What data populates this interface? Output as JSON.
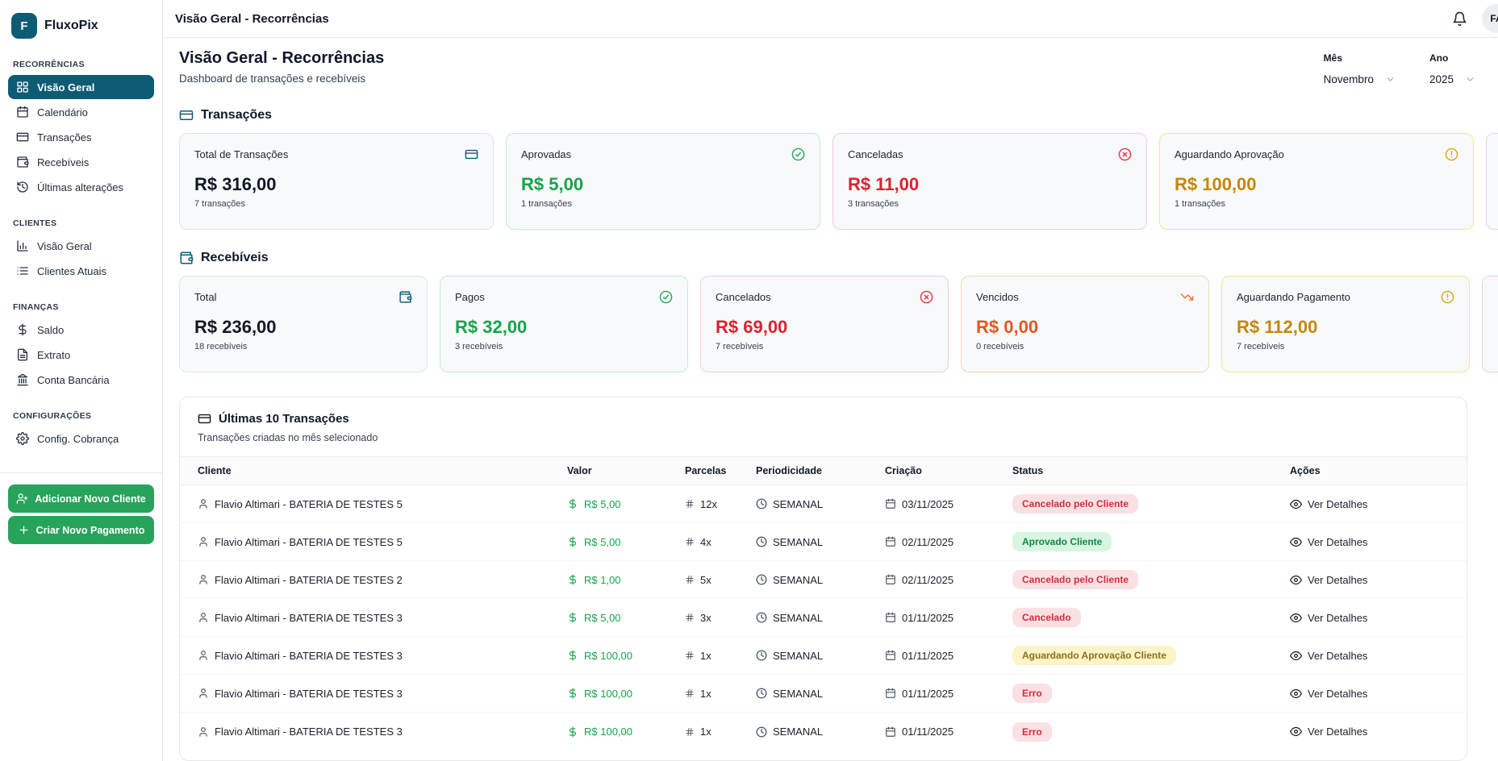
{
  "colors": {
    "brand_teal": "#0d5c74",
    "green": "#16a34a",
    "red": "#da2330",
    "amber": "#c5860c",
    "orange": "#e25822",
    "button_green": "#27a35b"
  },
  "brand": {
    "logo_letter": "F",
    "name": "FluxoPix"
  },
  "header": {
    "title": "Visão Geral - Recorrências",
    "avatar_initials": "FA"
  },
  "sidebar": {
    "sections": [
      {
        "label": "RECORRÊNCIAS",
        "items": [
          {
            "label": "Visão Geral",
            "icon": "grid-icon",
            "active": true
          },
          {
            "label": "Calendário",
            "icon": "calendar-icon",
            "active": false
          },
          {
            "label": "Transações",
            "icon": "credit-card-icon",
            "active": false
          },
          {
            "label": "Recebíveis",
            "icon": "wallet-icon",
            "active": false
          },
          {
            "label": "Últimas alterações",
            "icon": "history-icon",
            "active": false
          }
        ]
      },
      {
        "label": "CLIENTES",
        "items": [
          {
            "label": "Visão Geral",
            "icon": "bar-chart-icon",
            "active": false
          },
          {
            "label": "Clientes Atuais",
            "icon": "list-icon",
            "active": false
          }
        ]
      },
      {
        "label": "FINANÇAS",
        "items": [
          {
            "label": "Saldo",
            "icon": "dollar-icon",
            "active": false
          },
          {
            "label": "Extrato",
            "icon": "file-text-icon",
            "active": false
          },
          {
            "label": "Conta Bancária",
            "icon": "bank-icon",
            "active": false
          }
        ]
      },
      {
        "label": "CONFIGURAÇÕES",
        "items": [
          {
            "label": "Config. Cobrança",
            "icon": "gear-icon",
            "active": false
          }
        ]
      }
    ],
    "actions": [
      {
        "label": "Adicionar Novo Cliente",
        "icon": "user-plus-icon"
      },
      {
        "label": "Criar Novo Pagamento",
        "icon": "plus-icon"
      }
    ]
  },
  "page": {
    "title": "Visão Geral - Recorrências",
    "subtitle": "Dashboard de transações e recebíveis"
  },
  "filters": {
    "month_label": "Mês",
    "month_value": "Novembro",
    "year_label": "Ano",
    "year_value": "2025"
  },
  "sections": {
    "transacoes": {
      "title": "Transações",
      "icon": "credit-card-icon",
      "cards": [
        {
          "title": "Total de Transações",
          "icon": "credit-card-icon",
          "tone": "default",
          "value": "R$ 316,00",
          "sub": "7 transações",
          "partial": false
        },
        {
          "title": "Aprovadas",
          "icon": "check-circle-icon",
          "tone": "green",
          "value": "R$ 5,00",
          "sub": "1 transações",
          "partial": false
        },
        {
          "title": "Canceladas",
          "icon": "x-circle-icon",
          "tone": "red",
          "value": "R$ 11,00",
          "sub": "3 transações",
          "partial": false
        },
        {
          "title": "Aguardando Aprovação",
          "icon": "alert-circle-icon",
          "tone": "yellow",
          "value": "R$ 100,00",
          "sub": "1 transações",
          "partial": false
        },
        {
          "title": "",
          "icon": "",
          "tone": "red",
          "value": "",
          "sub": "",
          "partial": true
        }
      ]
    },
    "recebiveis": {
      "title": "Recebíveis",
      "icon": "wallet-icon",
      "cards": [
        {
          "title": "Total",
          "icon": "wallet-icon",
          "tone": "default",
          "value": "R$ 236,00",
          "sub": "18 recebíveis",
          "partial": false
        },
        {
          "title": "Pagos",
          "icon": "check-circle-icon",
          "tone": "green",
          "value": "R$ 32,00",
          "sub": "3 recebíveis",
          "partial": false
        },
        {
          "title": "Cancelados",
          "icon": "x-circle-icon",
          "tone": "red",
          "value": "R$ 69,00",
          "sub": "7 recebíveis",
          "partial": false
        },
        {
          "title": "Vencidos",
          "icon": "trending-down-icon",
          "tone": "orange",
          "value": "R$ 0,00",
          "sub": "0 recebíveis",
          "partial": false
        },
        {
          "title": "Aguardando Pagamento",
          "icon": "alert-circle-icon",
          "tone": "yellow",
          "value": "R$ 112,00",
          "sub": "7 recebíveis",
          "partial": false
        },
        {
          "title": "",
          "icon": "",
          "tone": "red",
          "value": "",
          "sub": "",
          "partial": true
        }
      ]
    }
  },
  "table": {
    "title": "Últimas 10 Transações",
    "subtitle": "Transações criadas no mês selecionado",
    "columns": [
      "Cliente",
      "Valor",
      "Parcelas",
      "Periodicidade",
      "Criação",
      "Status",
      "Ações"
    ],
    "action_label": "Ver Detalhes",
    "rows": [
      {
        "cliente": "Flavio Altimari - BATERIA DE TESTES 5",
        "valor": "R$ 5,00",
        "parcelas": "12x",
        "periodicidade": "SEMANAL",
        "criacao": "03/11/2025",
        "status": "Cancelado pelo Cliente",
        "status_tone": "red"
      },
      {
        "cliente": "Flavio Altimari - BATERIA DE TESTES 5",
        "valor": "R$ 5,00",
        "parcelas": "4x",
        "periodicidade": "SEMANAL",
        "criacao": "02/11/2025",
        "status": "Aprovado Cliente",
        "status_tone": "green"
      },
      {
        "cliente": "Flavio Altimari - BATERIA DE TESTES 2",
        "valor": "R$ 1,00",
        "parcelas": "5x",
        "periodicidade": "SEMANAL",
        "criacao": "02/11/2025",
        "status": "Cancelado pelo Cliente",
        "status_tone": "red"
      },
      {
        "cliente": "Flavio Altimari - BATERIA DE TESTES 3",
        "valor": "R$ 5,00",
        "parcelas": "3x",
        "periodicidade": "SEMANAL",
        "criacao": "01/11/2025",
        "status": "Cancelado",
        "status_tone": "red"
      },
      {
        "cliente": "Flavio Altimari - BATERIA DE TESTES 3",
        "valor": "R$ 100,00",
        "parcelas": "1x",
        "periodicidade": "SEMANAL",
        "criacao": "01/11/2025",
        "status": "Aguardando Aprovação Cliente",
        "status_tone": "yellow"
      },
      {
        "cliente": "Flavio Altimari - BATERIA DE TESTES 3",
        "valor": "R$ 100,00",
        "parcelas": "1x",
        "periodicidade": "SEMANAL",
        "criacao": "01/11/2025",
        "status": "Erro",
        "status_tone": "red"
      },
      {
        "cliente": "Flavio Altimari - BATERIA DE TESTES 3",
        "valor": "R$ 100,00",
        "parcelas": "1x",
        "periodicidade": "SEMANAL",
        "criacao": "01/11/2025",
        "status": "Erro",
        "status_tone": "red"
      }
    ]
  }
}
